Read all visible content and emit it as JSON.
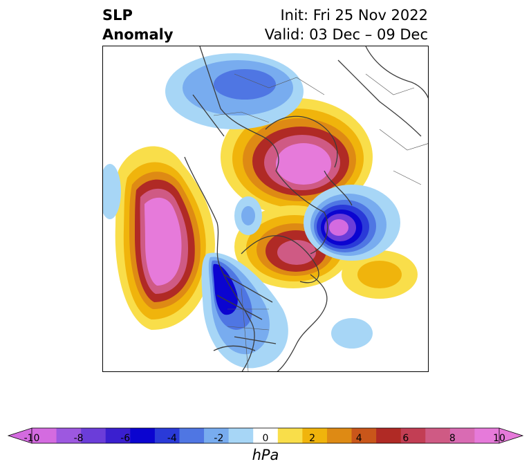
{
  "title": {
    "left_line1": "SLP",
    "left_line2": "Anomaly",
    "right_line1": "Init: Fri 25 Nov 2022",
    "right_line2": "Valid: 03 Dec – 09 Dec"
  },
  "colorbar": {
    "unit": "hPa",
    "levels": [
      -10,
      -9,
      -8,
      -7,
      -6,
      -5,
      -4,
      -3,
      -2,
      -1,
      1,
      2,
      3,
      4,
      5,
      6,
      7,
      8,
      9,
      10
    ],
    "colors": [
      "#d46be0",
      "#9d58e0",
      "#6b3dd9",
      "#3a1fcf",
      "#0b04d0",
      "#2a3ad8",
      "#4f76e3",
      "#78acef",
      "#a7d6f6",
      "#ffffff",
      "#f9de4a",
      "#f0b40c",
      "#de8a14",
      "#c9561a",
      "#b02a25",
      "#c23e54",
      "#cf5a84",
      "#d96bb3",
      "#e67ada"
    ],
    "ticks": [
      "-10",
      "-8",
      "-6",
      "-4",
      "-2",
      "0",
      "2",
      "4",
      "6",
      "8",
      "10"
    ],
    "extend_min_color": "#d46be0",
    "extend_max_color": "#e67ada"
  }
}
